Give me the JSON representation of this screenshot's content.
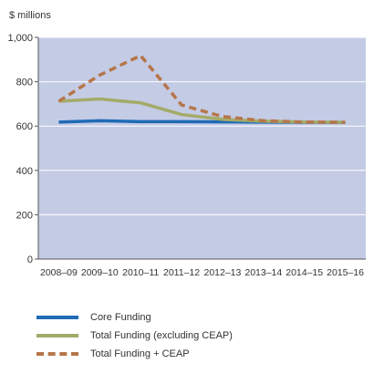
{
  "chart_data": {
    "type": "line",
    "title": "",
    "ylabel": "$ millions",
    "xlabel": "",
    "categories": [
      "2008–09",
      "2009–10",
      "2010–11",
      "2011–12",
      "2012–13",
      "2013–14",
      "2014–15",
      "2015–16"
    ],
    "ylim": [
      0,
      1000
    ],
    "yticks": [
      "0",
      "200",
      "400",
      "600",
      "800",
      "1,000"
    ],
    "ytick_values": [
      0,
      200,
      400,
      600,
      800,
      1000
    ],
    "grid": true,
    "legend_position": "bottom",
    "series": [
      {
        "name": "Core Funding",
        "values": [
          618,
          624,
          620,
          620,
          619,
          618,
          617,
          616
        ],
        "color": "#1f6bb5",
        "dash": "solid"
      },
      {
        "name": "Total Funding (excluding CEAP)",
        "values": [
          712,
          722,
          705,
          652,
          630,
          622,
          618,
          617
        ],
        "color": "#a3ab69",
        "dash": "solid"
      },
      {
        "name": "Total Funding + CEAP",
        "values": [
          712,
          830,
          918,
          695,
          643,
          624,
          618,
          617
        ],
        "color": "#b6764a",
        "dash": "dashed"
      }
    ],
    "plot_background": "#c4cbe5",
    "gridline_color": "#ffffff"
  }
}
